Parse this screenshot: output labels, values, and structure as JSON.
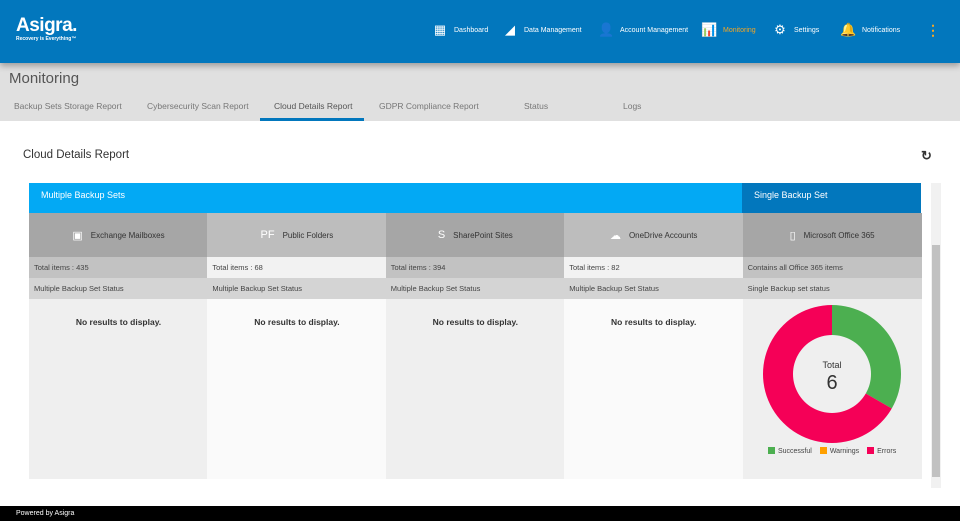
{
  "brand": {
    "name": "Asigra.",
    "tagline": "Recovery is Everything™"
  },
  "nav": [
    {
      "label": "Dashboard",
      "icon": "dashboard-icon",
      "glyph": "▦"
    },
    {
      "label": "Data Management",
      "icon": "data-management-icon",
      "glyph": "◢"
    },
    {
      "label": "Account Management",
      "icon": "person-icon",
      "glyph": "👤"
    },
    {
      "label": "Monitoring",
      "icon": "monitoring-icon",
      "glyph": "📊",
      "active": true
    },
    {
      "label": "Settings",
      "icon": "gear-icon",
      "glyph": "⚙"
    },
    {
      "label": "Notifications",
      "icon": "bell-icon",
      "glyph": "🔔"
    }
  ],
  "more_icon": "⋮",
  "page_title": "Monitoring",
  "tabs": [
    "Backup Sets Storage Report",
    "Cybersecurity Scan Report",
    "Cloud Details Report",
    "GDPR Compliance Report",
    "Status",
    "Logs"
  ],
  "active_tab": "Cloud Details Report",
  "report_title": "Cloud Details Report",
  "refresh_icon": "↻",
  "banners": {
    "multiple": "Multiple Backup Sets",
    "single": "Single Backup Set"
  },
  "columns": [
    {
      "name": "Exchange Mailboxes",
      "icon": "exchange-icon",
      "glyph": "▣",
      "total": "Total items : 435",
      "status": "Multiple Backup Set Status",
      "body": "No results to display."
    },
    {
      "name": "Public Folders",
      "icon": "public-folders-icon",
      "glyph": "PF",
      "total": "Total items : 68",
      "status": "Multiple Backup Set Status",
      "body": "No results to display."
    },
    {
      "name": "SharePoint Sites",
      "icon": "sharepoint-icon",
      "glyph": "S",
      "total": "Total items : 394",
      "status": "Multiple Backup Set Status",
      "body": "No results to display."
    },
    {
      "name": "OneDrive Accounts",
      "icon": "onedrive-icon",
      "glyph": "☁",
      "total": "Total items : 82",
      "status": "Multiple Backup Set Status",
      "body": "No results to display."
    },
    {
      "name": "Microsoft Office 365",
      "icon": "office365-icon",
      "glyph": "▯",
      "total": "Contains all Office 365 items",
      "status": "Single Backup set status"
    }
  ],
  "chart_data": {
    "type": "pie",
    "center_label": "Total",
    "center_value": "6",
    "categories": [
      "Successful",
      "Warnings",
      "Errors"
    ],
    "values": [
      2,
      0,
      4
    ],
    "colors": [
      "#4caf50",
      "#ffa000",
      "#f50057"
    ],
    "legend": "bottom"
  },
  "colors": {
    "header": "#0277bd",
    "banner_multiple": "#03a9f4",
    "banner_single": "#0277bd",
    "active": "#f5a623"
  },
  "footer": "Powered by Asigra"
}
